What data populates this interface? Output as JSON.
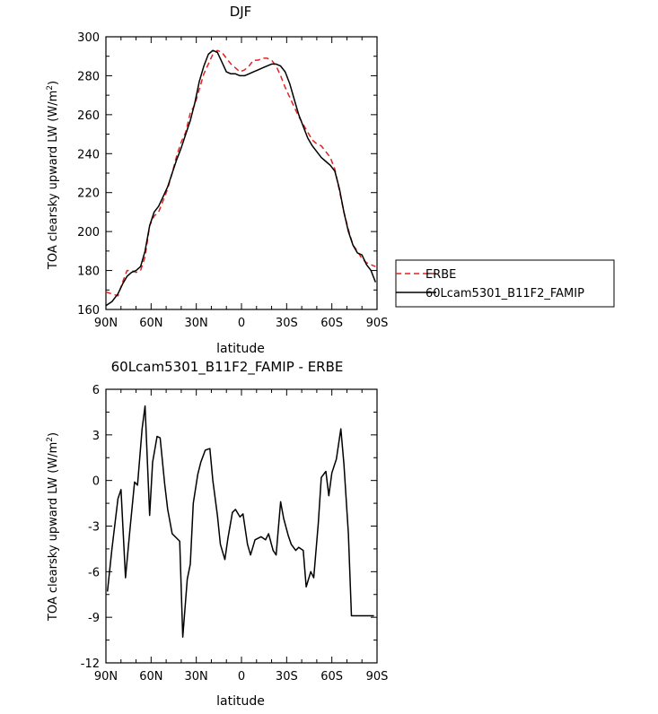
{
  "chart_data": [
    {
      "type": "line",
      "title": "DJF",
      "xlabel": "latitude",
      "ylabel": "TOA clearsky upward LW (W/m²)",
      "ylabel_main": "TOA clearsky upward LW (W/m",
      "ylabel_sup": "2",
      "ylabel_end": ")",
      "xlim": [
        90,
        -90
      ],
      "ylim": [
        160,
        300
      ],
      "x_ticks": [
        90,
        60,
        30,
        0,
        -30,
        -60,
        -90
      ],
      "x_tick_labels": [
        "90N",
        "60N",
        "30N",
        "0",
        "30S",
        "60S",
        "90S"
      ],
      "y_ticks": [
        160,
        180,
        200,
        220,
        240,
        260,
        280,
        300
      ],
      "y_tick_labels": [
        "160",
        "180",
        "200",
        "220",
        "240",
        "260",
        "280",
        "300"
      ],
      "legend_position": "right",
      "series": [
        {
          "name": "ERBE",
          "color": "#e32222",
          "dash": "dashed",
          "x": [
            90,
            86,
            82,
            79,
            76,
            73,
            70,
            67,
            64,
            61,
            58,
            55,
            52,
            49,
            46,
            43,
            40,
            37,
            34,
            31,
            28,
            25,
            22,
            19,
            16,
            13,
            10,
            7,
            4,
            1,
            -2,
            -5,
            -8,
            -11,
            -14,
            -17,
            -20,
            -23,
            -26,
            -29,
            -32,
            -35,
            -38,
            -41,
            -44,
            -47,
            -50,
            -53,
            -56,
            -59,
            -62,
            -65,
            -68,
            -71,
            -74,
            -77,
            -80,
            -83,
            -86,
            -89
          ],
          "y": [
            169,
            168,
            167,
            174,
            180,
            180,
            179,
            180,
            187,
            203,
            208,
            210,
            216,
            222,
            230,
            239,
            246,
            251,
            261,
            265,
            273,
            281,
            286,
            291,
            293,
            292,
            289,
            286,
            284,
            282,
            283,
            285,
            288,
            288,
            289,
            289,
            288,
            285,
            280,
            274,
            269,
            264,
            259,
            255,
            251,
            247,
            245,
            244,
            241,
            238,
            232,
            221,
            210,
            201,
            193,
            190,
            186,
            184,
            183,
            182
          ]
        },
        {
          "name": "60Lcam5301_B11F2_FAMIP",
          "color": "#000000",
          "dash": "solid",
          "x": [
            90,
            86,
            82,
            79,
            76,
            73,
            70,
            67,
            64,
            61,
            58,
            55,
            52,
            49,
            46,
            43,
            40,
            37,
            34,
            31,
            28,
            25,
            22,
            19,
            16,
            13,
            10,
            7,
            4,
            1,
            -2,
            -5,
            -8,
            -11,
            -14,
            -17,
            -20,
            -23,
            -26,
            -29,
            -32,
            -35,
            -38,
            -41,
            -44,
            -47,
            -50,
            -53,
            -56,
            -59,
            -62,
            -65,
            -68,
            -71,
            -74,
            -77,
            -80,
            -83,
            -86,
            -89
          ],
          "y": [
            162,
            164,
            168,
            173,
            177,
            179,
            180,
            182,
            190,
            203,
            210,
            213,
            218,
            223,
            230,
            237,
            243,
            250,
            257,
            266,
            277,
            285,
            291,
            293,
            292,
            287,
            282,
            281,
            281,
            280,
            280,
            281,
            282,
            283,
            284,
            285,
            286,
            286,
            285,
            282,
            276,
            268,
            260,
            254,
            248,
            244,
            241,
            238,
            236,
            234,
            231,
            222,
            210,
            200,
            193,
            189,
            188,
            183,
            180,
            174
          ]
        }
      ]
    },
    {
      "type": "line",
      "title": "60Lcam5301_B11F2_FAMIP - ERBE",
      "xlabel": "latitude",
      "ylabel": "TOA clearsky upward LW (W/m²)",
      "ylabel_main": "TOA clearsky upward LW (W/m",
      "ylabel_sup": "2",
      "ylabel_end": ")",
      "xlim": [
        90,
        -90
      ],
      "ylim": [
        -12,
        6
      ],
      "x_ticks": [
        90,
        60,
        30,
        0,
        -30,
        -60,
        -90
      ],
      "x_tick_labels": [
        "90N",
        "60N",
        "30N",
        "0",
        "30S",
        "60S",
        "90S"
      ],
      "y_ticks": [
        -12,
        -9,
        -6,
        -3,
        0,
        3,
        6
      ],
      "y_tick_labels": [
        "-12",
        "-9",
        "-6",
        "-3",
        "0",
        "3",
        "6"
      ],
      "series": [
        {
          "color": "#000000",
          "dash": "solid",
          "x": [
            89,
            86,
            82,
            80,
            77,
            74,
            71,
            69,
            66,
            64,
            61,
            59,
            56,
            54,
            51,
            49,
            46,
            44,
            41,
            39,
            36,
            34,
            32,
            29,
            27,
            24,
            21,
            19,
            16,
            14,
            11,
            9,
            6,
            4,
            1,
            -1,
            -4,
            -6,
            -9,
            -11,
            -13,
            -16,
            -18,
            -21,
            -23,
            -26,
            -28,
            -31,
            -33,
            -36,
            -38,
            -41,
            -43,
            -46,
            -48,
            -51,
            -53,
            -56,
            -58,
            -60,
            -63,
            -66,
            -68,
            -71,
            -73,
            -76,
            -78,
            -81,
            -83,
            -86,
            -88
          ],
          "y": [
            -7.3,
            -4.5,
            -1.2,
            -0.6,
            -6.4,
            -3.2,
            -0.1,
            -0.3,
            3.4,
            4.9,
            -2.3,
            1.2,
            2.9,
            2.8,
            -0.2,
            -1.9,
            -3.5,
            -3.7,
            -4.0,
            -10.3,
            -6.5,
            -5.5,
            -1.5,
            0.4,
            1.2,
            2.0,
            2.1,
            0.0,
            -2.3,
            -4.2,
            -5.2,
            -3.8,
            -2.1,
            -1.9,
            -2.4,
            -2.2,
            -4.2,
            -4.9,
            -3.9,
            -3.8,
            -3.7,
            -3.9,
            -3.5,
            -4.6,
            -4.9,
            -1.4,
            -2.5,
            -3.6,
            -4.2,
            -4.6,
            -4.4,
            -4.6,
            -7.0,
            -6.0,
            -6.4,
            -2.8,
            0.2,
            0.6,
            -1.0,
            0.5,
            1.4,
            3.4,
            1.1,
            -3.5,
            -8.9,
            -8.9,
            -8.9,
            -8.9,
            -8.9,
            -8.9,
            -8.9
          ]
        }
      ]
    }
  ]
}
